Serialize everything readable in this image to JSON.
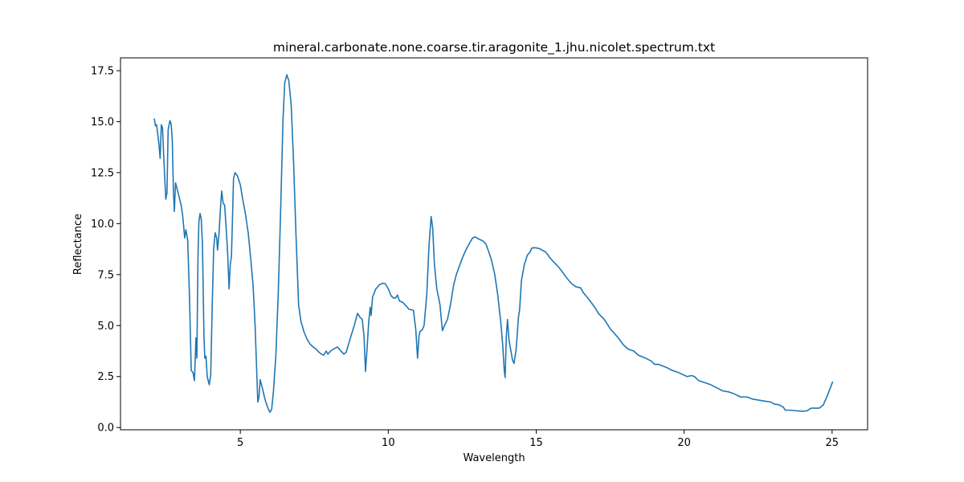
{
  "chart_data": {
    "type": "line",
    "title": "mineral.carbonate.none.coarse.tir.aragonite_1.jhu.nicolet.spectrum.txt",
    "x_label": "Wavelength",
    "y_label": "Reflectance",
    "xlim": [
      0.95,
      26.2
    ],
    "ylim": [
      -0.11,
      18.13
    ],
    "xticks": [
      5,
      10,
      15,
      20,
      25
    ],
    "yticks": [
      {
        "value": 0,
        "label": "0.0"
      },
      2.5,
      {
        "value": 5,
        "label": "5.0"
      },
      7.5,
      {
        "value": 10,
        "label": "10.0"
      },
      12.5,
      {
        "value": 15,
        "label": "15.0"
      },
      17.5
    ],
    "grid": false,
    "series": [
      {
        "color": "#1f77b4",
        "x": [
          2.09,
          2.13,
          2.17,
          2.2,
          2.25,
          2.29,
          2.33,
          2.37,
          2.42,
          2.48,
          2.52,
          2.56,
          2.62,
          2.66,
          2.7,
          2.74,
          2.77,
          2.81,
          2.9,
          3.0,
          3.05,
          3.12,
          3.16,
          3.22,
          3.28,
          3.34,
          3.4,
          3.45,
          3.5,
          3.53,
          3.57,
          3.6,
          3.64,
          3.68,
          3.72,
          3.77,
          3.8,
          3.84,
          3.88,
          3.95,
          4.0,
          4.05,
          4.1,
          4.15,
          4.2,
          4.23,
          4.28,
          4.33,
          4.37,
          4.42,
          4.47,
          4.52,
          4.57,
          4.62,
          4.66,
          4.7,
          4.73,
          4.77,
          4.82,
          4.9,
          5.0,
          5.08,
          5.17,
          5.27,
          5.35,
          5.43,
          5.5,
          5.56,
          5.59,
          5.63,
          5.67,
          5.75,
          5.83,
          5.92,
          6.0,
          6.06,
          6.12,
          6.2,
          6.28,
          6.36,
          6.44,
          6.5,
          6.57,
          6.64,
          6.72,
          6.8,
          6.88,
          6.97,
          7.05,
          7.15,
          7.25,
          7.35,
          7.46,
          7.56,
          7.65,
          7.74,
          7.82,
          7.9,
          7.96,
          8.05,
          8.15,
          8.28,
          8.4,
          8.5,
          8.58,
          8.7,
          8.85,
          8.96,
          9.05,
          9.12,
          9.18,
          9.23,
          9.28,
          9.34,
          9.39,
          9.42,
          9.47,
          9.58,
          9.7,
          9.82,
          9.9,
          10.0,
          10.1,
          10.18,
          10.25,
          10.31,
          10.38,
          10.48,
          10.58,
          10.7,
          10.85,
          10.93,
          10.99,
          11.04,
          11.07,
          11.15,
          11.21,
          11.3,
          11.38,
          11.45,
          11.5,
          11.56,
          11.64,
          11.71,
          11.75,
          11.8,
          11.83,
          11.9,
          12.0,
          12.1,
          12.21,
          12.3,
          12.4,
          12.5,
          12.62,
          12.75,
          12.85,
          12.94,
          13.05,
          13.2,
          13.3,
          13.4,
          13.49,
          13.6,
          13.7,
          13.8,
          13.87,
          13.92,
          13.95,
          13.99,
          14.03,
          14.08,
          14.14,
          14.2,
          14.25,
          14.32,
          14.4,
          14.44,
          14.5,
          14.6,
          14.7,
          14.79,
          14.85,
          14.95,
          15.1,
          15.2,
          15.33,
          15.45,
          15.6,
          15.74,
          15.9,
          16.05,
          16.2,
          16.35,
          16.5,
          16.6,
          16.69,
          16.85,
          17.0,
          17.1,
          17.3,
          17.5,
          17.77,
          17.95,
          18.1,
          18.3,
          18.45,
          18.7,
          18.9,
          19.0,
          19.13,
          19.4,
          19.6,
          19.8,
          19.95,
          20.1,
          20.25,
          20.35,
          20.49,
          20.7,
          20.9,
          21.1,
          21.3,
          21.5,
          21.7,
          21.9,
          22.12,
          22.3,
          22.5,
          22.7,
          22.93,
          23.05,
          23.2,
          23.35,
          23.42,
          23.6,
          23.8,
          24.02,
          24.15,
          24.29,
          24.4,
          24.56,
          24.7,
          24.85,
          25.02
        ],
        "values": [
          15.15,
          14.8,
          14.85,
          14.5,
          13.9,
          13.2,
          14.85,
          14.7,
          13.0,
          11.2,
          11.5,
          14.6,
          15.05,
          14.9,
          14.1,
          11.5,
          10.6,
          12.0,
          11.5,
          10.9,
          10.4,
          9.3,
          9.7,
          9.2,
          6.5,
          2.8,
          2.7,
          2.3,
          4.4,
          3.4,
          8.5,
          10.1,
          10.5,
          10.2,
          9.0,
          4.5,
          3.4,
          3.5,
          2.5,
          2.1,
          2.6,
          6.0,
          8.8,
          9.55,
          9.3,
          8.7,
          9.5,
          10.8,
          11.6,
          11.0,
          10.9,
          9.8,
          8.6,
          6.8,
          8.0,
          8.4,
          10.0,
          12.2,
          12.5,
          12.35,
          11.9,
          11.2,
          10.5,
          9.5,
          8.3,
          7.0,
          5.0,
          2.5,
          1.25,
          1.5,
          2.35,
          1.9,
          1.4,
          1.0,
          0.75,
          0.9,
          1.8,
          3.5,
          6.5,
          10.5,
          15.0,
          16.9,
          17.3,
          17.0,
          15.8,
          13.0,
          9.5,
          6.0,
          5.2,
          4.7,
          4.35,
          4.1,
          3.95,
          3.85,
          3.7,
          3.6,
          3.55,
          3.75,
          3.6,
          3.75,
          3.85,
          3.95,
          3.75,
          3.6,
          3.7,
          4.3,
          5.0,
          5.6,
          5.4,
          5.3,
          4.5,
          2.75,
          3.8,
          5.2,
          5.9,
          5.5,
          6.4,
          6.8,
          7.0,
          7.08,
          7.05,
          6.8,
          6.45,
          6.35,
          6.35,
          6.5,
          6.2,
          6.15,
          6.0,
          5.8,
          5.75,
          4.8,
          3.4,
          4.5,
          4.7,
          4.8,
          5.0,
          6.5,
          9.0,
          10.35,
          9.8,
          8.0,
          6.8,
          6.3,
          6.0,
          5.2,
          4.75,
          5.0,
          5.3,
          6.0,
          7.0,
          7.5,
          7.9,
          8.3,
          8.7,
          9.05,
          9.3,
          9.35,
          9.25,
          9.15,
          9.0,
          8.6,
          8.2,
          7.5,
          6.5,
          5.2,
          4.0,
          2.8,
          2.45,
          4.5,
          5.3,
          4.3,
          3.8,
          3.3,
          3.15,
          3.8,
          5.4,
          5.8,
          7.2,
          8.0,
          8.45,
          8.6,
          8.8,
          8.82,
          8.78,
          8.7,
          8.6,
          8.35,
          8.1,
          7.9,
          7.6,
          7.3,
          7.05,
          6.9,
          6.85,
          6.6,
          6.45,
          6.15,
          5.85,
          5.6,
          5.3,
          4.85,
          4.4,
          4.05,
          3.85,
          3.75,
          3.55,
          3.4,
          3.25,
          3.1,
          3.1,
          2.95,
          2.8,
          2.7,
          2.6,
          2.5,
          2.55,
          2.5,
          2.3,
          2.2,
          2.1,
          1.95,
          1.8,
          1.75,
          1.65,
          1.5,
          1.5,
          1.4,
          1.35,
          1.3,
          1.25,
          1.15,
          1.12,
          1.0,
          0.85,
          0.85,
          0.82,
          0.8,
          0.82,
          0.95,
          0.95,
          0.95,
          1.1,
          1.6,
          2.25
        ]
      }
    ]
  }
}
